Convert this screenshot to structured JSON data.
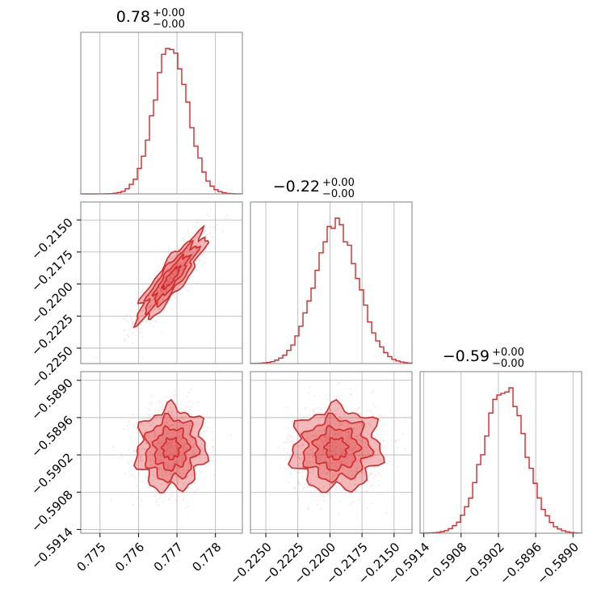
{
  "chart_data": {
    "type": "corner",
    "color": "#d62728",
    "parameters": [
      {
        "title_value": "0.78",
        "title_plus": "+0.00",
        "title_minus": "−0.00",
        "range": [
          0.7745,
          0.7787
        ],
        "mean": 0.77685,
        "sd": 0.00044,
        "ticks": [
          0.775,
          0.776,
          0.777,
          0.778
        ],
        "tick_labels": [
          "0.775",
          "0.776",
          "0.777",
          "0.778"
        ]
      },
      {
        "title_value": "−0.22",
        "title_plus": "+0.00",
        "title_minus": "−0.00",
        "range": [
          -0.2262,
          -0.2136
        ],
        "mean": -0.2195,
        "sd": 0.0017,
        "ticks": [
          -0.225,
          -0.2225,
          -0.22,
          -0.2175,
          -0.215
        ],
        "tick_labels": [
          "−0.2250",
          "−0.2225",
          "−0.2200",
          "−0.2175",
          "−0.2150"
        ],
        "y_ticks": [
          -0.215,
          -0.2175,
          -0.22,
          -0.2225,
          -0.225
        ],
        "y_tick_labels": [
          "−0.2150",
          "−0.2175",
          "−0.2200",
          "−0.2225",
          "−0.2250"
        ]
      },
      {
        "title_value": "−0.59",
        "title_plus": "+0.00",
        "title_minus": "−0.00",
        "range": [
          -0.59146,
          -0.58886
        ],
        "mean": -0.5901,
        "sd": 0.00033,
        "ticks": [
          -0.5914,
          -0.5908,
          -0.5902,
          -0.5896,
          -0.589
        ],
        "tick_labels": [
          "−0.5914",
          "−0.5908",
          "−0.5902",
          "−0.5896",
          "−0.5890"
        ],
        "y_ticks": [
          -0.589,
          -0.5896,
          -0.5902,
          -0.5908,
          -0.5914
        ],
        "y_tick_labels": [
          "−0.5890",
          "−0.5896",
          "−0.5902",
          "−0.5908",
          "−0.5914"
        ]
      }
    ],
    "correlations": {
      "0-1": 0.88,
      "0-2": 0.05,
      "1-2": 0.02
    },
    "contour_levels": [
      0.5,
      1.0,
      1.5,
      2.0
    ],
    "grid": true
  }
}
